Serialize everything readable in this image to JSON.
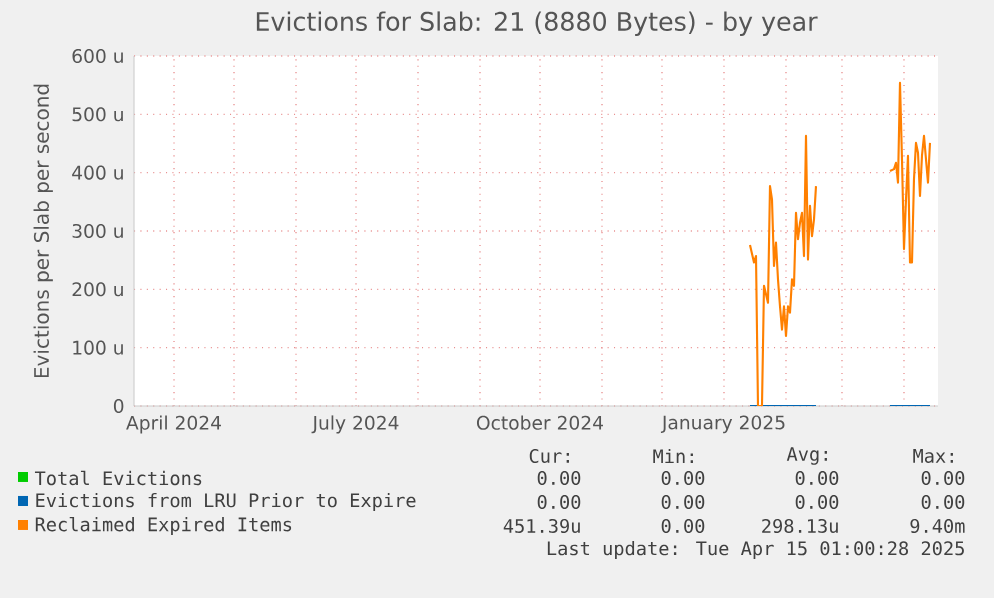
{
  "chart_data": {
    "type": "line",
    "title": "Evictions for Slab: 21 (8880 Bytes) - by year",
    "ylabel": "Evictions per Slab per second",
    "xlim": [
      "2024-03-12",
      "2025-04-18"
    ],
    "xticks": [
      {
        "value": "2024-04-01",
        "label": "April 2024"
      },
      {
        "value": "2024-05-01",
        "label": null
      },
      {
        "value": "2024-06-01",
        "label": null
      },
      {
        "value": "2024-07-01",
        "label": "July 2024"
      },
      {
        "value": "2024-08-01",
        "label": null
      },
      {
        "value": "2024-09-01",
        "label": null
      },
      {
        "value": "2024-10-01",
        "label": "October 2024"
      },
      {
        "value": "2024-11-01",
        "label": null
      },
      {
        "value": "2024-12-01",
        "label": null
      },
      {
        "value": "2025-01-01",
        "label": "January 2025"
      },
      {
        "value": "2025-02-01",
        "label": null
      },
      {
        "value": "2025-03-01",
        "label": null
      },
      {
        "value": "2025-04-01",
        "label": null
      }
    ],
    "ylim": [
      0,
      600
    ],
    "yticks": [
      0,
      {
        "value": 100,
        "label": "100 u"
      },
      {
        "value": 200,
        "label": "200 u"
      },
      {
        "value": 300,
        "label": "300 u"
      },
      {
        "value": 400,
        "label": "400 u"
      },
      {
        "value": 500,
        "label": "500 u"
      },
      {
        "value": 600,
        "label": "600 u"
      }
    ],
    "grid": true,
    "legend": "bottom",
    "series": [
      {
        "name": "Total Evictions",
        "color": "#00cc00"
      },
      {
        "name": "Evictions from LRU Prior to Expire",
        "color": "#0066b3",
        "x": [
          "2025-01-14",
          "2025-02-16",
          "2025-03-01",
          "2025-03-25",
          "2025-04-14"
        ],
        "values": [
          0,
          0,
          null,
          0,
          0
        ]
      },
      {
        "name": "Reclaimed Expired Items",
        "color": "#ff8000",
        "x": [
          "2025-01-14",
          "2025-01-16",
          "2025-01-17",
          "2025-01-18",
          "2025-01-20",
          "2025-01-21",
          "2025-01-23",
          "2025-01-24",
          "2025-01-25",
          "2025-01-26",
          "2025-01-27",
          "2025-01-28",
          "2025-01-29",
          "2025-01-30",
          "2025-01-31",
          "2025-02-01",
          "2025-02-02",
          "2025-02-03",
          "2025-02-04",
          "2025-02-05",
          "2025-02-06",
          "2025-02-07",
          "2025-02-08",
          "2025-02-09",
          "2025-02-10",
          "2025-02-11",
          "2025-02-12",
          "2025-02-13",
          "2025-02-14",
          "2025-02-15",
          "2025-02-16",
          "2025-03-01",
          "2025-03-25",
          "2025-03-27",
          "2025-03-28",
          "2025-03-29",
          "2025-03-30",
          "2025-03-31",
          "2025-04-01",
          "2025-04-02",
          "2025-04-03",
          "2025-04-04",
          "2025-04-05",
          "2025-04-06",
          "2025-04-07",
          "2025-04-08",
          "2025-04-09",
          "2025-04-10",
          "2025-04-11",
          "2025-04-12",
          "2025-04-13",
          "2025-04-14"
        ],
        "values": [
          276,
          246,
          257,
          0,
          0,
          206,
          177,
          377,
          354,
          240,
          280,
          217,
          171,
          131,
          171,
          120,
          171,
          160,
          217,
          206,
          331,
          286,
          314,
          331,
          257,
          463,
          251,
          343,
          291,
          320,
          377,
          null,
          403,
          406,
          417,
          383,
          554,
          423,
          269,
          354,
          429,
          246,
          246,
          389,
          451,
          434,
          360,
          429,
          463,
          423,
          383,
          451
        ]
      }
    ],
    "annotations": [
      "Cur:",
      "Min:",
      "Avg:",
      "Max:",
      "0.00",
      "0.00",
      "0.00",
      "0.00",
      "0.00",
      "0.00",
      "0.00",
      "0.00",
      "451.39u",
      "0.00",
      "298.13u",
      "9.40m",
      "Last update: Tue Apr 15 01:00:28 2025"
    ]
  }
}
